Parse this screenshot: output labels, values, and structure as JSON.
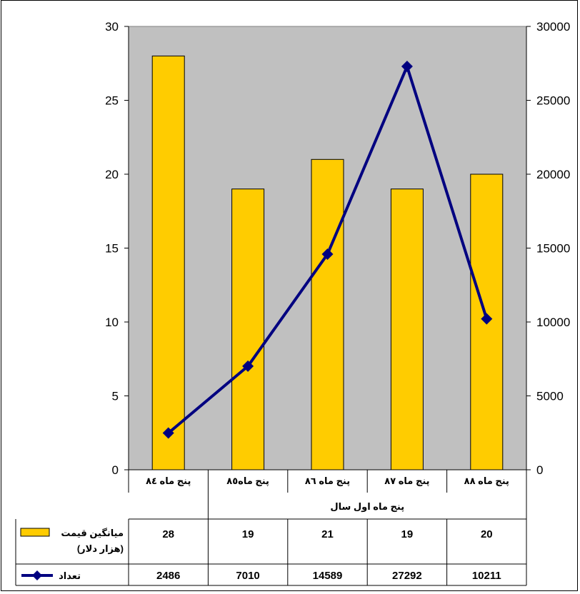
{
  "chart_data": {
    "type": "bar",
    "categories": [
      "پنج ماه ٨٤",
      "پنج ماه٨٥",
      "پنج ماه ٨٦",
      "پنج ماه ٨٧",
      "پنج ماه ٨٨"
    ],
    "group_label": "پنج ماه اول سال",
    "series": [
      {
        "name": "ميانگين قيمت",
        "name_line2": "(هزار دلار)",
        "type": "bar",
        "axis": "left",
        "values": [
          28,
          19,
          21,
          19,
          20
        ],
        "color": "#FFCC00"
      },
      {
        "name": "تعداد",
        "type": "line",
        "axis": "right",
        "values": [
          2486,
          7010,
          14589,
          27292,
          10211
        ],
        "color": "#000080"
      }
    ],
    "y_left": {
      "min": 0,
      "max": 30,
      "ticks": [
        "0",
        "5",
        "10",
        "15",
        "20",
        "25",
        "30"
      ]
    },
    "y_right": {
      "min": 0,
      "max": 30000,
      "ticks": [
        "0",
        "5000",
        "10000",
        "15000",
        "20000",
        "25000",
        "30000"
      ]
    },
    "plot_background": "#C0C0C0",
    "data_table": true,
    "legend": "in data table"
  }
}
